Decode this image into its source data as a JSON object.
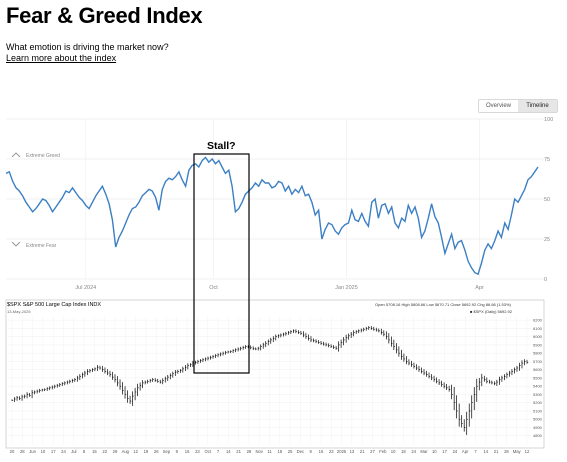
{
  "page": {
    "title": "Fear & Greed Index",
    "subtitle": "What emotion is driving the market now?",
    "learn_more": "Learn more about the index"
  },
  "toggle": {
    "overview": "Overview",
    "timeline": "Timeline"
  },
  "annotation": {
    "label": "Stall?"
  },
  "chart_data": [
    {
      "type": "line",
      "name": "fear-greed-timeline",
      "extreme_greed_label": "Extreme Greed",
      "extreme_fear_label": "Extreme Fear",
      "ylim": [
        0,
        100
      ],
      "yticks": [
        "0",
        "25",
        "50",
        "75",
        "100"
      ],
      "xticks": [
        {
          "label": "Jul 2024",
          "t": 0.15
        },
        {
          "label": "Oct",
          "t": 0.39
        },
        {
          "label": "Jan 2025",
          "t": 0.64
        },
        {
          "label": "Apr",
          "t": 0.89
        }
      ],
      "grid": true,
      "color": "#3b7fc4",
      "series": [
        {
          "values": [
            66,
            67,
            61,
            57,
            55,
            52,
            48,
            45,
            42,
            44,
            47,
            50,
            49,
            46,
            42,
            45,
            48,
            51,
            55,
            54,
            57,
            54,
            51,
            49,
            46,
            44,
            48,
            52,
            55,
            58,
            53,
            47,
            37,
            20,
            26,
            30,
            35,
            40,
            44,
            45,
            48,
            52,
            54,
            56,
            55,
            51,
            43,
            56,
            61,
            63,
            62,
            64,
            67,
            62,
            58,
            68,
            71,
            72,
            70,
            74,
            76,
            73,
            75,
            72,
            74,
            70,
            66,
            68,
            58,
            42,
            44,
            48,
            53,
            55,
            57,
            60,
            58,
            62,
            60,
            60,
            57,
            58,
            61,
            60,
            55,
            58,
            53,
            56,
            54,
            58,
            52,
            53,
            48,
            40,
            43,
            25,
            31,
            35,
            34,
            30,
            28,
            32,
            34,
            35,
            43,
            37,
            36,
            41,
            36,
            33,
            48,
            50,
            38,
            46,
            47,
            41,
            45,
            35,
            32,
            38,
            36,
            46,
            41,
            45,
            38,
            26,
            30,
            38,
            47,
            39,
            35,
            26,
            16,
            22,
            28,
            19,
            23,
            24,
            18,
            11,
            7,
            4,
            3,
            10,
            18,
            22,
            19,
            24,
            30,
            26,
            35,
            31,
            40,
            50,
            48,
            52,
            56,
            62,
            64,
            67,
            70
          ]
        }
      ],
      "label": "",
      "values": []
    },
    {
      "type": "line",
      "name": "spx-price",
      "header": "$SPX S&P 500 Large Cap Index INDX",
      "ohlc": "Open 5708.16  High 5808.66  Low 5670.71  Close 5692.92  Chg 86.66 (1.53%)",
      "legend": "■ $SPX (Daily) 5692.92",
      "ylim": [
        4700,
        6250
      ],
      "yticks": [
        "4800",
        "4900",
        "5000",
        "5100",
        "5200",
        "5300",
        "5400",
        "5500",
        "5600",
        "5700",
        "5800",
        "5900",
        "6000",
        "6100",
        "6200"
      ],
      "xticks": [
        "20",
        "28",
        "Jun",
        "10",
        "17",
        "24",
        "Jul",
        "8",
        "15",
        "22",
        "29",
        "Aug",
        "12",
        "19",
        "26",
        "Sep",
        "9",
        "16",
        "23",
        "Oct",
        "7",
        "14",
        "21",
        "28",
        "Nov",
        "11",
        "18",
        "25",
        "Dec",
        "9",
        "16",
        "23",
        "2025",
        "13",
        "21",
        "27",
        "Feb",
        "10",
        "18",
        "24",
        "Mar",
        "10",
        "17",
        "24",
        "Apr",
        "7",
        "14",
        "21",
        "28",
        "May",
        "12"
      ],
      "grid": true,
      "color": "#000000",
      "series": [
        {
          "values": [
            5230,
            5245,
            5260,
            5250,
            5270,
            5280,
            5300,
            5290,
            5320,
            5330,
            5340,
            5350,
            5355,
            5360,
            5370,
            5380,
            5390,
            5400,
            5410,
            5420,
            5430,
            5440,
            5450,
            5460,
            5470,
            5480,
            5500,
            5520,
            5540,
            5560,
            5580,
            5590,
            5600,
            5610,
            5630,
            5620,
            5600,
            5580,
            5560,
            5540,
            5510,
            5480,
            5440,
            5400,
            5350,
            5300,
            5250,
            5220,
            5280,
            5330,
            5380,
            5410,
            5440,
            5450,
            5460,
            5470,
            5480,
            5470,
            5460,
            5450,
            5470,
            5490,
            5510,
            5530,
            5550,
            5570,
            5580,
            5590,
            5610,
            5630,
            5650,
            5660,
            5680,
            5690,
            5700,
            5710,
            5720,
            5730,
            5740,
            5750,
            5760,
            5770,
            5780,
            5790,
            5800,
            5810,
            5815,
            5820,
            5830,
            5840,
            5850,
            5860,
            5870,
            5880,
            5875,
            5865,
            5855,
            5850,
            5860,
            5880,
            5900,
            5920,
            5940,
            5960,
            5980,
            6000,
            6010,
            6020,
            6030,
            6040,
            6050,
            6060,
            6070,
            6060,
            6050,
            6040,
            6020,
            6000,
            5980,
            5960,
            5950,
            5940,
            5930,
            5920,
            5910,
            5900,
            5890,
            5880,
            5870,
            5860,
            5900,
            5930,
            5960,
            5990,
            6010,
            6030,
            6050,
            6060,
            6070,
            6080,
            6090,
            6100,
            6110,
            6100,
            6090,
            6080,
            6070,
            6050,
            6030,
            6000,
            5960,
            5920,
            5880,
            5840,
            5800,
            5760,
            5730,
            5700,
            5680,
            5660,
            5640,
            5620,
            5600,
            5580,
            5560,
            5540,
            5520,
            5500,
            5480,
            5460,
            5440,
            5420,
            5400,
            5380,
            5360,
            5300,
            5200,
            5100,
            5000,
            4950,
            4900,
            5000,
            5100,
            5200,
            5300,
            5400,
            5450,
            5500,
            5480,
            5460,
            5450,
            5440,
            5430,
            5450,
            5480,
            5500,
            5520,
            5540,
            5560,
            5580,
            5600,
            5620,
            5650,
            5680,
            5700,
            5690
          ]
        }
      ],
      "label": "",
      "values": []
    }
  ]
}
